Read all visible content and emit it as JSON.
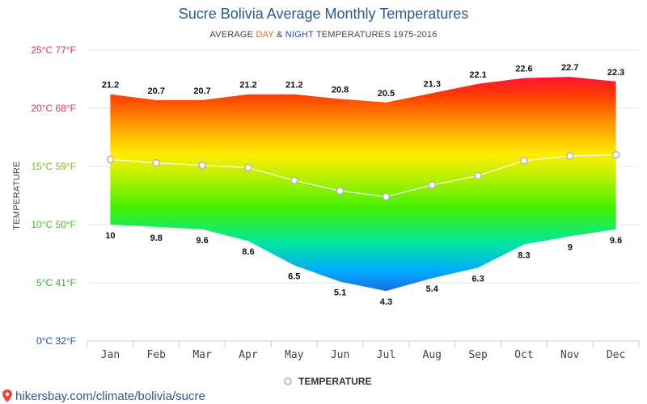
{
  "chart_data": {
    "type": "area",
    "title": "Sucre Bolivia Average Monthly Temperatures",
    "subtitle": {
      "prefix": "AVERAGE ",
      "day": "DAY",
      "mid": " & ",
      "night": "NIGHT",
      "suffix": " TEMPERATURES 1975-2016"
    },
    "ylabel": "TEMPERATURE",
    "categories": [
      "Jan",
      "Feb",
      "Mar",
      "Apr",
      "May",
      "Jun",
      "Jul",
      "Aug",
      "Sep",
      "Oct",
      "Nov",
      "Dec"
    ],
    "series": [
      {
        "name": "Day",
        "values": [
          21.2,
          20.7,
          20.7,
          21.2,
          21.2,
          20.8,
          20.5,
          21.3,
          22.1,
          22.6,
          22.7,
          22.3
        ]
      },
      {
        "name": "Night",
        "values": [
          10,
          9.8,
          9.6,
          8.6,
          6.5,
          5.1,
          4.3,
          5.4,
          6.3,
          8.3,
          9,
          9.6
        ]
      },
      {
        "name": "Temperature",
        "values": [
          15.6,
          15.3,
          15.1,
          14.9,
          13.8,
          12.9,
          12.4,
          13.4,
          14.2,
          15.5,
          15.9,
          16.0
        ]
      }
    ],
    "ylim": [
      0,
      25
    ],
    "yticks": [
      {
        "value": 0,
        "label": "0°C 32°F",
        "color": "#1f4fa8"
      },
      {
        "value": 5,
        "label": "5°C 41°F",
        "color": "#2db52d"
      },
      {
        "value": 10,
        "label": "10°C 50°F",
        "color": "#55b82a"
      },
      {
        "value": 15,
        "label": "15°C 59°F",
        "color": "#7ab82a"
      },
      {
        "value": 20,
        "label": "20°C 68°F",
        "color": "#e0306a"
      },
      {
        "value": 25,
        "label": "25°C 77°F",
        "color": "#e0306a"
      }
    ],
    "legend": [
      {
        "name": "TEMPERATURE",
        "position": "bottom-center"
      }
    ],
    "grid": true
  },
  "footer": {
    "source": "hikersbay.com/climate/bolivia/sucre"
  },
  "colors": {
    "title": "#2b5a8a",
    "day": "#e8641e",
    "night": "#1f4fa8",
    "grid": "#e6e6e6",
    "line": "#ffffff",
    "marker_stroke": "#b5b5b5",
    "pin": "#e8463c"
  },
  "icons": {
    "source": "location-pin-icon",
    "legend": "circle-marker-icon"
  }
}
